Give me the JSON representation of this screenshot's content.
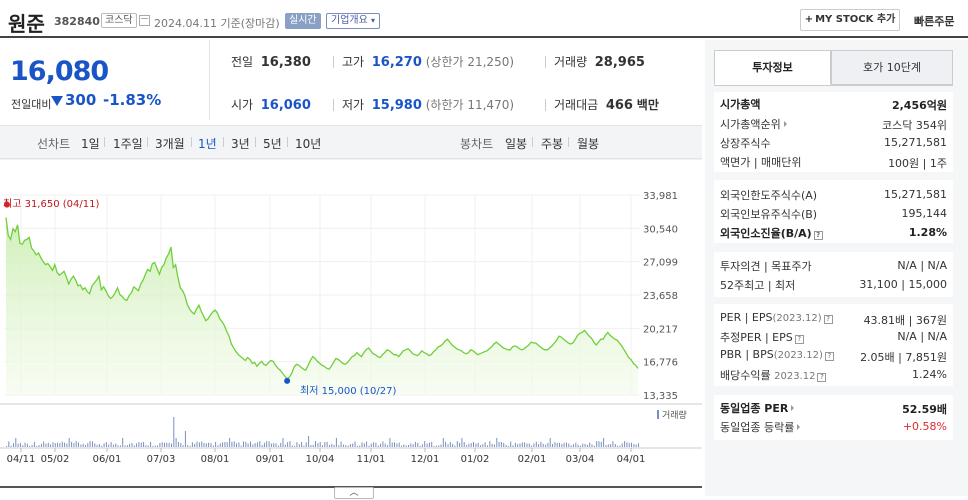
{
  "header": {
    "title": "원준",
    "code": "382840",
    "market_badge": "코스닥",
    "date": "2024.04.11",
    "date_note": "기준(장마감)",
    "realtime_badge": "실시간",
    "corp_badge": "기업개요",
    "mystock_label": "MY STOCK 추가",
    "quick_order_label": "빠른주문"
  },
  "price": {
    "current": "16,080",
    "diff_label": "전일대비",
    "diff": "300",
    "diff_pct": "-1.83%",
    "direction": "down"
  },
  "stats": {
    "prev_close_label": "전일",
    "prev_close": "16,380",
    "high_label": "고가",
    "high": "16,270",
    "upper_limit": "(상한가 21,250)",
    "volume_label": "거래량",
    "volume": "28,965",
    "open_label": "시가",
    "open": "16,060",
    "low_label": "저가",
    "low": "15,980",
    "lower_limit": "(하한가 11,470)",
    "amount_label": "거래대금",
    "amount": "466",
    "amount_unit": "백만"
  },
  "period_bar": {
    "line_label": "선차트",
    "line_items": [
      "1일",
      "1주일",
      "3개월",
      "1년",
      "3년",
      "5년",
      "10년"
    ],
    "active": "1년",
    "candle_label": "봉차트",
    "candle_items": [
      "일봉",
      "주봉",
      "월봉"
    ]
  },
  "chart_data": {
    "type": "area",
    "title": "",
    "y_ticks": [
      "33,981",
      "30,540",
      "27,099",
      "23,658",
      "20,217",
      "16,776",
      "13,335"
    ],
    "ylim": [
      13335,
      33981
    ],
    "x_ticks": [
      "04/11",
      "05/02",
      "06/01",
      "07/03",
      "08/01",
      "09/01",
      "10/04",
      "11/01",
      "12/01",
      "01/02",
      "02/01",
      "03/04",
      "04/01"
    ],
    "max_label": "최고 31,650 (04/11)",
    "min_label": "최저 15,000 (10/27)",
    "volume_legend": "거래량",
    "series": [
      {
        "values": [
          31650,
          29800,
          29400,
          30500,
          30200,
          30900,
          29000,
          28900,
          29300,
          29400,
          29600,
          28500,
          28200,
          27800,
          28000,
          27500,
          27100,
          26800,
          26900,
          26600,
          26200,
          26800,
          26000,
          25700,
          25900,
          26100,
          25500,
          24800,
          25300,
          25600,
          25200,
          24600,
          24700,
          24200,
          24400,
          24000,
          23800,
          24600,
          24900,
          25200,
          25600,
          24200,
          24500,
          24100,
          23600,
          23300,
          23500,
          23900,
          24400,
          23700,
          23500,
          23200,
          23100,
          23600,
          23900,
          24500,
          24300,
          24100,
          24800,
          25200,
          25800,
          26300,
          26100,
          26900,
          27000,
          26400,
          25800,
          26500,
          26800,
          27500,
          27900,
          28600,
          26500,
          26800,
          25500,
          24400,
          24100,
          23600,
          22700,
          22200,
          21900,
          21700,
          22200,
          22600,
          22000,
          21500,
          21000,
          21200,
          21600,
          21900,
          22100,
          21800,
          21200,
          20900,
          20500,
          19900,
          19400,
          18600,
          18200,
          17800,
          17500,
          17300,
          17100,
          16900,
          17200,
          17000,
          16600,
          16700,
          16300,
          16600,
          16800,
          16500,
          16400,
          16700,
          16900,
          16800,
          16400,
          16100,
          15900,
          15600,
          15300,
          15000,
          15200,
          15600,
          16200,
          16500,
          16400,
          16200,
          16000,
          15900,
          16400,
          16900,
          17300,
          17100,
          16800,
          16600,
          16400,
          16300,
          16100,
          16000,
          16300,
          16700,
          17100,
          17000,
          16800,
          16600,
          16500,
          16700,
          17000,
          17300,
          17400,
          17700,
          17500,
          17300,
          17700,
          18000,
          18200,
          17900,
          17600,
          17500,
          17300,
          17200,
          17500,
          17700,
          18000,
          17900,
          17700,
          17500,
          17500,
          17300,
          17600,
          17900,
          18000,
          18100,
          17900,
          17600,
          17500,
          17400,
          17600,
          17900,
          17700,
          17600,
          17400,
          17500,
          17800,
          18000,
          18300,
          18400,
          18600,
          18900,
          19100,
          18800,
          18500,
          18300,
          18100,
          18000,
          17900,
          17700,
          17600,
          17700,
          18000,
          17900,
          17700,
          17500,
          17600,
          17700,
          17800,
          17900,
          18100,
          18300,
          18600,
          18800,
          18600,
          18400,
          18200,
          18100,
          18000,
          18000,
          18300,
          18400,
          18300,
          18100,
          18000,
          18100,
          18300,
          18500,
          18800,
          18700,
          18700,
          18500,
          18300,
          18100,
          18000,
          18000,
          18200,
          18400,
          18700,
          19000,
          19400,
          19300,
          19100,
          18900,
          18700,
          18600,
          18700,
          19100,
          19500,
          19700,
          19800,
          20000,
          19700,
          19400,
          19200,
          18800,
          18500,
          18800,
          19100,
          19100,
          19500,
          19800,
          19500,
          19300,
          19100,
          19000,
          18700,
          18400,
          18000,
          17600,
          17200,
          17000,
          16600,
          16400,
          16080
        ]
      }
    ]
  },
  "tabs": {
    "invest_info": "투자정보",
    "orderbook": "호가 10단계"
  },
  "invest": {
    "mcap_label": "시가총액",
    "mcap": "2,456억원",
    "mcap_rank_label": "시가총액순위",
    "mcap_rank": "코스닥 354위",
    "shares_label": "상장주식수",
    "shares": "15,271,581",
    "par_label": "액면가 | 매매단위",
    "par": "100원 | 1주",
    "foreign_limit_label": "외국인한도주식수(A)",
    "foreign_limit": "15,271,581",
    "foreign_hold_label": "외국인보유주식수(B)",
    "foreign_hold": "195,144",
    "foreign_ratio_label": "외국인소진율(B/A)",
    "foreign_ratio": "1.28%",
    "opinion_label": "투자의견 | 목표주가",
    "opinion": "N/A | N/A",
    "w52_label": "52주최고 | 최저",
    "w52": "31,100 | 15,000",
    "per_label": "PER | EPS",
    "per_period": "(2023.12)",
    "per": "43.81배 | 367원",
    "est_per_label": "추정PER | EPS",
    "est_per": "N/A | N/A",
    "pbr_label": "PBR | BPS",
    "pbr_period": "(2023.12)",
    "pbr": "2.05배 | 7,851원",
    "div_label": "배당수익률",
    "div_period": "2023.12",
    "div": "1.24%",
    "sector_per_label": "동일업종 PER",
    "sector_per": "52.59배",
    "sector_rate_label": "동일업종 등락률",
    "sector_rate": "+0.58%"
  },
  "colors": {
    "down": "#1a55c8",
    "up": "#e0292e",
    "line": "#6fcf3a"
  }
}
